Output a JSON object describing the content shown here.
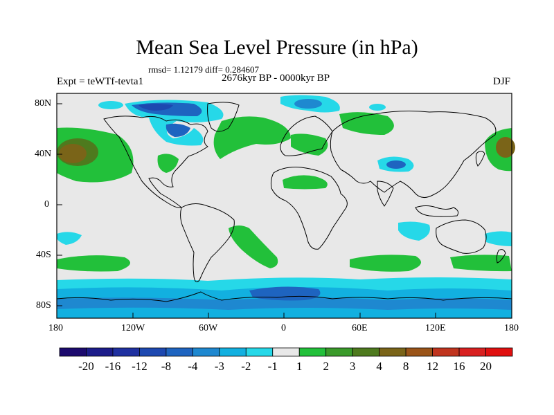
{
  "title": "Mean Sea Level Pressure (in hPa)",
  "stats": "rmsd= 1.12179 diff= 0.284607",
  "experiment": "Expt = teWTf-tevta1",
  "period": "2676kyr BP - 0000kyr BP",
  "season": "DJF",
  "lat_labels": [
    "80N",
    "40N",
    "0",
    "40S",
    "80S"
  ],
  "lon_labels": [
    "180",
    "120W",
    "60W",
    "0",
    "60E",
    "120E",
    "180"
  ],
  "colorbar": {
    "labels": [
      "-20",
      "-16",
      "-12",
      "-8",
      "-4",
      "-3",
      "-2",
      "-1",
      "1",
      "2",
      "3",
      "4",
      "8",
      "12",
      "16",
      "20"
    ],
    "colors": [
      "#1c0a6e",
      "#1c1c8a",
      "#1f30a0",
      "#1d48b0",
      "#1e64c0",
      "#1e88d0",
      "#12b0e0",
      "#26d8e8",
      "#e8e8e8",
      "#22c03a",
      "#3a9a2a",
      "#4e7a1e",
      "#7a6418",
      "#9a5418",
      "#c0341e",
      "#d82020",
      "#e01010"
    ]
  },
  "colors": {
    "land_ocean_neutral": "#e8e8e8",
    "coastline": "#000000"
  }
}
